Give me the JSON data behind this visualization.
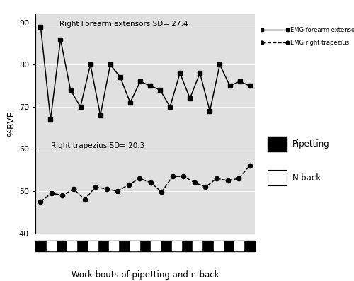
{
  "forearm_y": [
    89,
    67,
    86,
    74,
    70,
    80,
    68,
    80,
    77,
    71,
    76,
    75,
    74,
    70,
    78,
    72,
    78,
    69,
    80,
    75,
    76,
    75
  ],
  "trapezius_y": [
    47.5,
    49.5,
    49,
    50.5,
    48,
    51,
    50.5,
    50,
    51.5,
    53,
    52,
    49.8,
    53.5,
    53.5,
    52,
    51,
    53,
    52.5,
    53,
    56
  ],
  "forearm_label": "Right Forearm extensors SD= 27.4",
  "trapezius_label": "Right trapezius SD= 20.3",
  "ylabel": "%RVE",
  "xlabel": "Work bouts of pipetting and n-back",
  "ylim": [
    40,
    92
  ],
  "yticks": [
    40,
    50,
    60,
    70,
    80,
    90
  ],
  "legend1_label": "EMG forearm extensors",
  "legend2_label": "EMG right trapezius",
  "pipetting_label": "Pipetting",
  "nback_label": "N-back",
  "bg_color": "#e0e0e0",
  "n_fore": 22,
  "n_trap": 20
}
